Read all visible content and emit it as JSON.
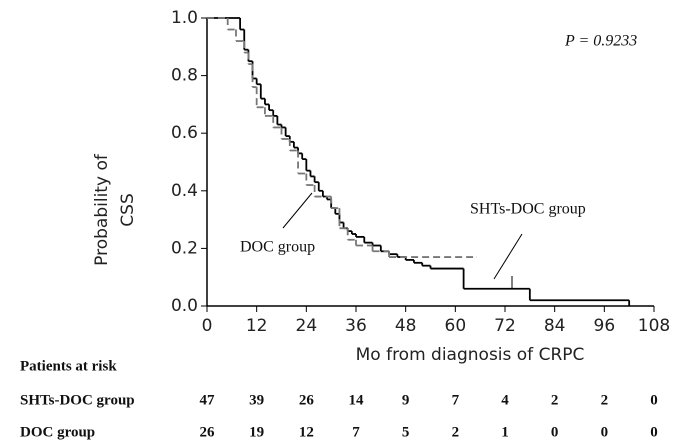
{
  "chart_data": {
    "type": "step",
    "annotation": "P = 0.9233",
    "x_label": "Mo from diagnosis of CRPC",
    "y_label": [
      "Probability of",
      "CSS"
    ],
    "xlim": [
      0,
      108
    ],
    "xticks": [
      0,
      12,
      24,
      36,
      48,
      60,
      72,
      84,
      96,
      108
    ],
    "ylim": [
      0,
      1
    ],
    "yticks": [
      {
        "value": 0,
        "label": "0.0"
      },
      0.2,
      0.4,
      0.6,
      0.8,
      {
        "value": 1,
        "label": "1.0"
      }
    ],
    "series": [
      {
        "name": "SHTs-DOC group",
        "color": "#000000",
        "dash": false,
        "x": [
          0,
          8,
          9,
          10,
          11,
          12,
          13,
          14,
          15,
          16,
          17,
          18,
          19,
          20,
          21,
          22,
          23,
          24,
          25,
          26,
          27,
          28,
          29,
          30,
          31,
          32,
          33,
          34,
          35,
          36,
          38,
          40,
          42,
          44,
          46,
          48,
          50,
          52,
          54,
          62,
          78,
          102
        ],
        "values": [
          1.0,
          0.96,
          0.89,
          0.85,
          0.79,
          0.77,
          0.72,
          0.7,
          0.68,
          0.66,
          0.63,
          0.62,
          0.59,
          0.57,
          0.55,
          0.53,
          0.51,
          0.47,
          0.45,
          0.43,
          0.4,
          0.38,
          0.37,
          0.34,
          0.32,
          0.29,
          0.27,
          0.26,
          0.25,
          0.24,
          0.22,
          0.21,
          0.19,
          0.18,
          0.17,
          0.16,
          0.15,
          0.14,
          0.13,
          0.06,
          0.02,
          0.0
        ],
        "at_risk": [
          47,
          39,
          26,
          14,
          9,
          7,
          4,
          2,
          2,
          0
        ]
      },
      {
        "name": "DOC group",
        "color": "#777777",
        "dash": true,
        "x": [
          0,
          5,
          7,
          9,
          10,
          11,
          12,
          14,
          16,
          18,
          20,
          22,
          24,
          26,
          30,
          32,
          34,
          36,
          40,
          44,
          65
        ],
        "values": [
          1.0,
          0.96,
          0.92,
          0.88,
          0.84,
          0.76,
          0.69,
          0.66,
          0.62,
          0.58,
          0.54,
          0.46,
          0.42,
          0.38,
          0.34,
          0.27,
          0.23,
          0.21,
          0.19,
          0.17,
          0.17
        ],
        "at_risk": [
          26,
          19,
          12,
          7,
          5,
          2,
          1,
          0,
          0,
          0
        ]
      }
    ],
    "at_risk_title": "Patients at risk"
  }
}
